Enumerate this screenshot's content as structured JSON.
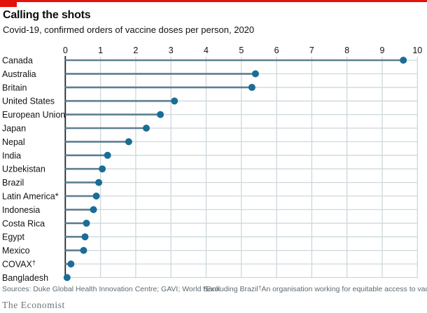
{
  "header": {
    "title": "Calling the shots",
    "subtitle": "Covid-19, confirmed orders of vaccine doses per person, 2020"
  },
  "chart_data": {
    "type": "bar",
    "variant": "lollipop-horizontal",
    "title": "Calling the shots",
    "subtitle": "Covid-19, confirmed orders of vaccine doses per person, 2020",
    "categories": [
      "Canada",
      "Australia",
      "Britain",
      "United States",
      "European Union",
      "Japan",
      "Nepal",
      "India",
      "Uzbekistan",
      "Brazil",
      "Latin America*",
      "Indonesia",
      "Costa Rica",
      "Egypt",
      "Mexico",
      "COVAX†",
      "Bangladesh"
    ],
    "values": [
      9.6,
      5.4,
      5.3,
      3.1,
      2.7,
      2.3,
      1.8,
      1.2,
      1.05,
      0.95,
      0.88,
      0.8,
      0.6,
      0.56,
      0.52,
      0.16,
      0.05
    ],
    "xlabel": "",
    "ylabel": "",
    "xlim": [
      0,
      10
    ],
    "x_ticks": [
      0,
      1,
      2,
      3,
      4,
      5,
      6,
      7,
      8,
      9,
      10
    ],
    "grid": true,
    "legend": "none"
  },
  "colors": {
    "accent_red": "#e3120b",
    "dot_blue": "#1a6d96",
    "stem_blue_grey": "#5d7f91",
    "gridline": "#cdd8dc",
    "axis_dark": "#20262b",
    "text_dark": "#121212",
    "text_muted": "#5e6a71"
  },
  "footer": {
    "sources": "Sources: Duke Global Health Innovation Centre; GAVI; World Bank",
    "footnote_excluding": "*Excluding Brazil",
    "footnote_dagger_marker": "†",
    "footnote_dagger_text": "An organisation working for equitable access to vaccines",
    "brand": "The Economist"
  }
}
